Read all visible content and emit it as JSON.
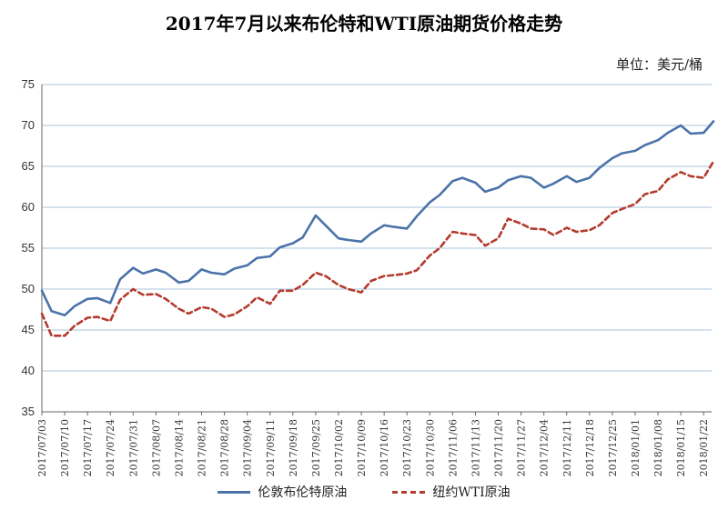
{
  "chart_data": {
    "type": "line",
    "title": "2017年7月以来布伦特和WTI原油期货价格走势",
    "unit": "单位：美元/桶",
    "ylim": [
      35,
      75
    ],
    "y_ticks": [
      35,
      40,
      45,
      50,
      55,
      60,
      65,
      70,
      75
    ],
    "x_ticks": [
      "2017/07/03",
      "2017/07/10",
      "2017/07/17",
      "2017/07/24",
      "2017/07/31",
      "2017/08/07",
      "2017/08/14",
      "2017/08/21",
      "2017/08/28",
      "2017/09/04",
      "2017/09/11",
      "2017/09/18",
      "2017/09/25",
      "2017/10/02",
      "2017/10/09",
      "2017/10/16",
      "2017/10/23",
      "2017/10/30",
      "2017/11/06",
      "2017/11/13",
      "2017/11/20",
      "2017/11/27",
      "2017/12/04",
      "2017/12/11",
      "2017/12/18",
      "2017/12/25",
      "2018/01/01",
      "2018/01/08",
      "2018/01/15",
      "2018/01/22"
    ],
    "grid": true,
    "legend_position": "bottom",
    "series": [
      {
        "name": "伦敦布伦特原油",
        "color": "#4b73a9",
        "style": "solid",
        "x": [
          "2017/07/03",
          "2017/07/06",
          "2017/07/10",
          "2017/07/13",
          "2017/07/17",
          "2017/07/20",
          "2017/07/24",
          "2017/07/27",
          "2017/07/31",
          "2017/08/03",
          "2017/08/07",
          "2017/08/10",
          "2017/08/14",
          "2017/08/17",
          "2017/08/21",
          "2017/08/24",
          "2017/08/28",
          "2017/08/31",
          "2017/09/04",
          "2017/09/07",
          "2017/09/11",
          "2017/09/14",
          "2017/09/18",
          "2017/09/21",
          "2017/09/25",
          "2017/09/28",
          "2017/10/02",
          "2017/10/05",
          "2017/10/09",
          "2017/10/12",
          "2017/10/16",
          "2017/10/19",
          "2017/10/23",
          "2017/10/26",
          "2017/10/30",
          "2017/11/02",
          "2017/11/06",
          "2017/11/09",
          "2017/11/13",
          "2017/11/16",
          "2017/11/20",
          "2017/11/23",
          "2017/11/27",
          "2017/11/30",
          "2017/12/04",
          "2017/12/07",
          "2017/12/11",
          "2017/12/14",
          "2017/12/18",
          "2017/12/21",
          "2017/12/25",
          "2017/12/28",
          "2018/01/01",
          "2018/01/04",
          "2018/01/08",
          "2018/01/11",
          "2018/01/15",
          "2018/01/18",
          "2018/01/22",
          "2018/01/25"
        ],
        "values": [
          49.8,
          47.3,
          46.8,
          47.9,
          48.8,
          48.9,
          48.3,
          51.2,
          52.6,
          51.9,
          52.4,
          52.0,
          50.8,
          51.0,
          52.4,
          52.0,
          51.8,
          52.5,
          52.9,
          53.8,
          54.0,
          55.1,
          55.6,
          56.3,
          59.0,
          57.8,
          56.2,
          56.0,
          55.8,
          56.8,
          57.8,
          57.6,
          57.4,
          58.9,
          60.6,
          61.5,
          63.2,
          63.6,
          63.0,
          61.9,
          62.4,
          63.3,
          63.8,
          63.6,
          62.4,
          62.9,
          63.8,
          63.1,
          63.6,
          64.8,
          66.0,
          66.6,
          66.9,
          67.6,
          68.2,
          69.1,
          70.0,
          69.0,
          69.1,
          70.5
        ]
      },
      {
        "name": "纽约WTI原油",
        "color": "#b33b2e",
        "style": "dashed",
        "x": [
          "2017/07/03",
          "2017/07/06",
          "2017/07/10",
          "2017/07/13",
          "2017/07/17",
          "2017/07/20",
          "2017/07/24",
          "2017/07/27",
          "2017/07/31",
          "2017/08/03",
          "2017/08/07",
          "2017/08/10",
          "2017/08/14",
          "2017/08/17",
          "2017/08/21",
          "2017/08/24",
          "2017/08/28",
          "2017/08/31",
          "2017/09/04",
          "2017/09/07",
          "2017/09/11",
          "2017/09/14",
          "2017/09/18",
          "2017/09/21",
          "2017/09/25",
          "2017/09/28",
          "2017/10/02",
          "2017/10/05",
          "2017/10/09",
          "2017/10/12",
          "2017/10/16",
          "2017/10/19",
          "2017/10/23",
          "2017/10/26",
          "2017/10/30",
          "2017/11/02",
          "2017/11/06",
          "2017/11/09",
          "2017/11/13",
          "2017/11/16",
          "2017/11/20",
          "2017/11/23",
          "2017/11/27",
          "2017/11/30",
          "2017/12/04",
          "2017/12/07",
          "2017/12/11",
          "2017/12/14",
          "2017/12/18",
          "2017/12/21",
          "2017/12/25",
          "2017/12/28",
          "2018/01/01",
          "2018/01/04",
          "2018/01/08",
          "2018/01/11",
          "2018/01/15",
          "2018/01/18",
          "2018/01/22",
          "2018/01/25"
        ],
        "values": [
          47.0,
          44.3,
          44.3,
          45.5,
          46.5,
          46.6,
          46.1,
          48.7,
          50.0,
          49.3,
          49.4,
          48.8,
          47.6,
          47.0,
          47.8,
          47.6,
          46.6,
          46.9,
          47.9,
          49.0,
          48.2,
          49.8,
          49.8,
          50.5,
          52.0,
          51.6,
          50.5,
          50.0,
          49.6,
          51.0,
          51.6,
          51.7,
          51.9,
          52.3,
          54.1,
          55.0,
          57.0,
          56.8,
          56.6,
          55.3,
          56.2,
          58.6,
          58.0,
          57.4,
          57.3,
          56.6,
          57.5,
          57.0,
          57.2,
          57.8,
          59.3,
          59.8,
          60.4,
          61.6,
          62.0,
          63.4,
          64.3,
          63.8,
          63.6,
          65.6
        ]
      }
    ]
  }
}
